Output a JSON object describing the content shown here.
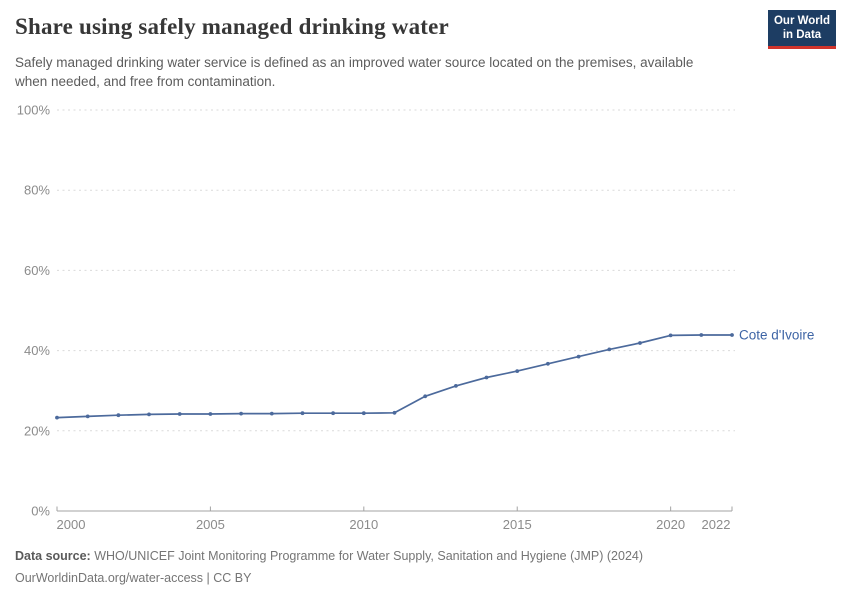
{
  "header": {
    "title": "Share using safely managed drinking water",
    "subtitle": "Safely managed drinking water service is defined as an improved water source located on the premises, available when needed, and free from contamination.",
    "logo": {
      "line1": "Our World",
      "line2": "in Data"
    }
  },
  "chart_data": {
    "type": "line",
    "title": "Share using safely managed drinking water",
    "x": [
      2000,
      2001,
      2002,
      2003,
      2004,
      2005,
      2006,
      2007,
      2008,
      2009,
      2010,
      2011,
      2012,
      2013,
      2014,
      2015,
      2016,
      2017,
      2018,
      2019,
      2020,
      2021,
      2022
    ],
    "series": [
      {
        "name": "Cote d'Ivoire",
        "color": "#4c6a9c",
        "label_color": "#3d64a5",
        "values": [
          23.3,
          23.6,
          23.9,
          24.1,
          24.2,
          24.2,
          24.3,
          24.3,
          24.4,
          24.4,
          24.4,
          24.5,
          28.6,
          31.2,
          33.3,
          34.9,
          36.7,
          38.5,
          40.3,
          41.9,
          43.8,
          43.9,
          43.9
        ]
      }
    ],
    "xlabel": "",
    "ylabel": "",
    "ylim": [
      0,
      100
    ],
    "yticks": [
      0,
      20,
      40,
      60,
      80,
      100
    ],
    "ytick_suffix": "%",
    "xticks": [
      2000,
      2005,
      2010,
      2015,
      2020,
      2022
    ],
    "grid": "horizontal-dashed",
    "legend_position": "end-of-line-label"
  },
  "footer": {
    "datasource_label": "Data source:",
    "datasource_text": " WHO/UNICEF Joint Monitoring Programme for Water Supply, Sanitation and Hygiene (JMP) (2024)",
    "license_line": "OurWorldinData.org/water-access | CC BY"
  }
}
